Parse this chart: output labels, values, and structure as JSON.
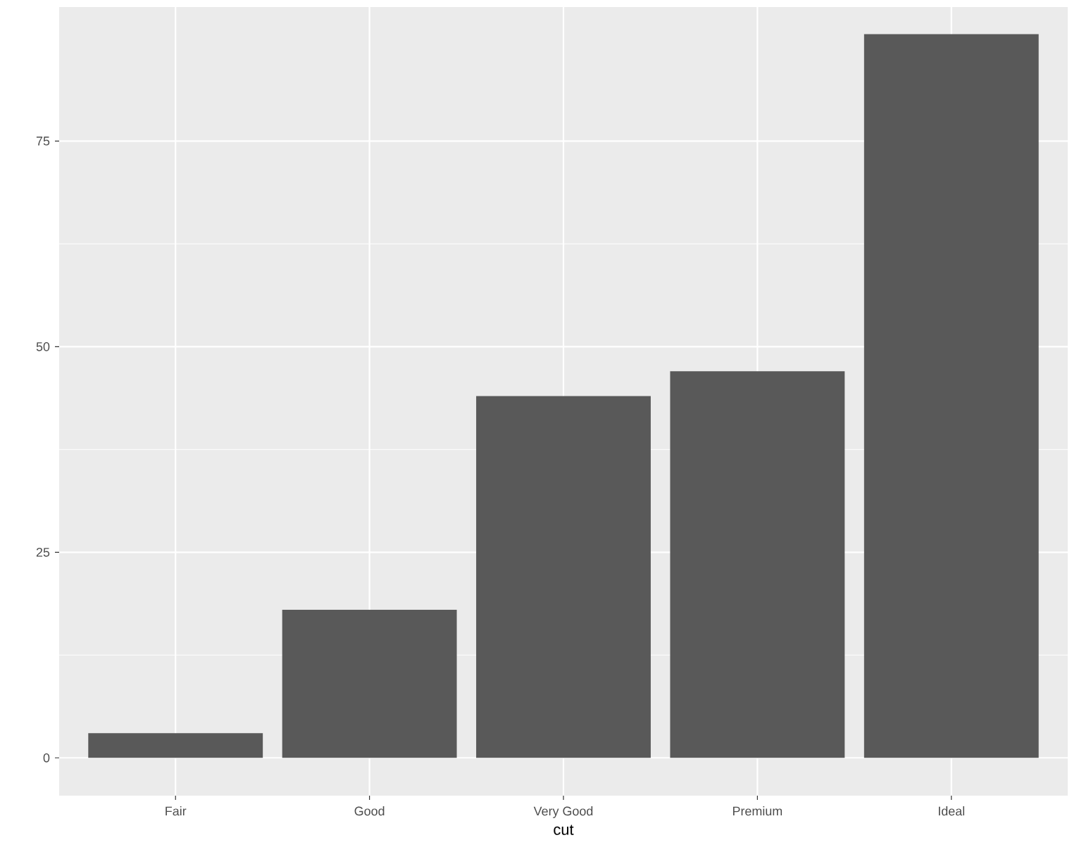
{
  "chart_data": {
    "type": "bar",
    "xlabel": "cut",
    "categories": [
      "Fair",
      "Good",
      "Very Good",
      "Premium",
      "Ideal"
    ],
    "values": [
      3,
      18,
      44,
      47,
      88
    ],
    "color": "#595959",
    "ylim": [
      -4.6,
      91.3
    ],
    "yticks": [
      0,
      25,
      50,
      75
    ],
    "grid": true
  }
}
